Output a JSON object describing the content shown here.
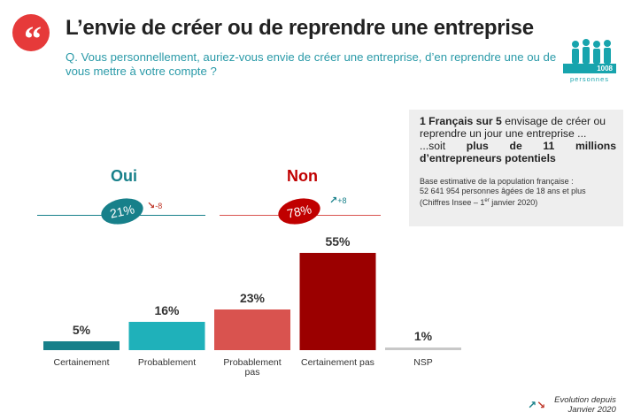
{
  "header": {
    "quote_icon": "quote-icon",
    "quote_glyph": "“",
    "title": "L’envie de créer ou de reprendre une entreprise",
    "question": "Q. Vous personnellement, auriez-vous envie de créer une entreprise, d’en reprendre une ou de vous mettre à votre compte ?"
  },
  "sample": {
    "icon": "people-icon",
    "count": "1008",
    "label": "personnes"
  },
  "info_box": {
    "highlight": "1 Français sur 5",
    "line1_rest": " envisage de créer ou reprendre un jour une entreprise ...",
    "line3_prefix": "...soit",
    "line3_w1": "plus",
    "line3_w2": "de",
    "line3_w3": "11",
    "line3_w4": "millions",
    "line4": "d’entrepreneurs potentiels",
    "base_line1": "Base estimative de la population française :",
    "base_line2": "52 641 954 personnes âgées de 18 ans et plus",
    "base_line3_prefix": "(Chiffres Insee – 1",
    "base_line3_sup": "er",
    "base_line3_suffix": " janvier 2020)"
  },
  "groups": {
    "oui": {
      "title": "Oui",
      "value": "21%",
      "evolution": "-8",
      "evolution_icon": "arrow-down-icon",
      "color": "#17808a"
    },
    "non": {
      "title": "Non",
      "value": "78%",
      "evolution": "+8",
      "evolution_icon": "arrow-up-icon",
      "color": "#c00000"
    }
  },
  "chart_data": {
    "type": "bar",
    "categories": [
      "Certainement",
      "Probablement",
      "Probablement pas",
      "Certainement pas",
      "NSP"
    ],
    "category_lines": [
      [
        "Certainement"
      ],
      [
        "Probablement"
      ],
      [
        "Probablement",
        "pas"
      ],
      [
        "Certainement pas"
      ],
      [
        "NSP"
      ]
    ],
    "values": [
      5,
      16,
      23,
      55,
      1
    ],
    "value_labels": [
      "5%",
      "16%",
      "23%",
      "55%",
      "1%"
    ],
    "colors": [
      "#17808a",
      "#1fb1ba",
      "#d9534f",
      "#9b0000",
      "#c8c8c8"
    ],
    "ylim": [
      0,
      55
    ]
  },
  "legend": {
    "line1": "Evolution depuis",
    "line2": "Janvier 2020",
    "up_icon": "arrow-up-icon",
    "down_icon": "arrow-down-icon"
  }
}
